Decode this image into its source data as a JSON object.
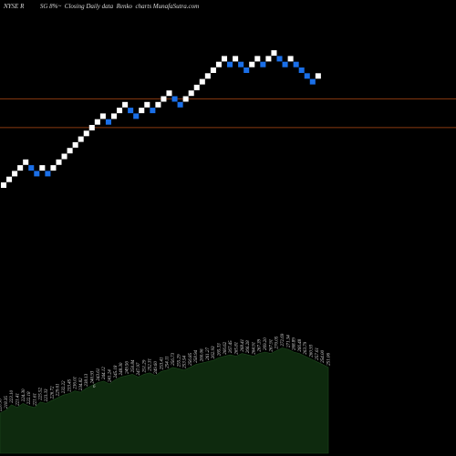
{
  "chart_data": {
    "type": "renko",
    "title": "NYSE R          SG 8%~  Closing Daily data  Renko  charts MunafaSutra.com",
    "colors": {
      "background": "#000000",
      "up_brick": "#ffffff",
      "down_brick": "#1a6fe8",
      "reference_line": "#8a3a10",
      "volume_fill": "#0e2a0e"
    },
    "bricks": [
      {
        "level": 1,
        "dir": "up"
      },
      {
        "level": 2,
        "dir": "up"
      },
      {
        "level": 3,
        "dir": "up"
      },
      {
        "level": 4,
        "dir": "up"
      },
      {
        "level": 5,
        "dir": "up"
      },
      {
        "level": 4,
        "dir": "down"
      },
      {
        "level": 3,
        "dir": "down"
      },
      {
        "level": 4,
        "dir": "up"
      },
      {
        "level": 3,
        "dir": "down"
      },
      {
        "level": 4,
        "dir": "up"
      },
      {
        "level": 5,
        "dir": "up"
      },
      {
        "level": 6,
        "dir": "up"
      },
      {
        "level": 7,
        "dir": "up"
      },
      {
        "level": 8,
        "dir": "up"
      },
      {
        "level": 9,
        "dir": "up"
      },
      {
        "level": 10,
        "dir": "up"
      },
      {
        "level": 11,
        "dir": "up"
      },
      {
        "level": 12,
        "dir": "up"
      },
      {
        "level": 13,
        "dir": "up"
      },
      {
        "level": 12,
        "dir": "down"
      },
      {
        "level": 13,
        "dir": "up"
      },
      {
        "level": 14,
        "dir": "up"
      },
      {
        "level": 15,
        "dir": "up"
      },
      {
        "level": 14,
        "dir": "down"
      },
      {
        "level": 13,
        "dir": "down"
      },
      {
        "level": 14,
        "dir": "up"
      },
      {
        "level": 15,
        "dir": "up"
      },
      {
        "level": 14,
        "dir": "down"
      },
      {
        "level": 15,
        "dir": "up"
      },
      {
        "level": 16,
        "dir": "up"
      },
      {
        "level": 17,
        "dir": "up"
      },
      {
        "level": 16,
        "dir": "down"
      },
      {
        "level": 15,
        "dir": "down"
      },
      {
        "level": 16,
        "dir": "up"
      },
      {
        "level": 17,
        "dir": "up"
      },
      {
        "level": 18,
        "dir": "up"
      },
      {
        "level": 19,
        "dir": "up"
      },
      {
        "level": 20,
        "dir": "up"
      },
      {
        "level": 21,
        "dir": "up"
      },
      {
        "level": 22,
        "dir": "up"
      },
      {
        "level": 23,
        "dir": "up"
      },
      {
        "level": 22,
        "dir": "down"
      },
      {
        "level": 23,
        "dir": "up"
      },
      {
        "level": 22,
        "dir": "down"
      },
      {
        "level": 21,
        "dir": "down"
      },
      {
        "level": 22,
        "dir": "up"
      },
      {
        "level": 23,
        "dir": "up"
      },
      {
        "level": 22,
        "dir": "down"
      },
      {
        "level": 23,
        "dir": "up"
      },
      {
        "level": 24,
        "dir": "up"
      },
      {
        "level": 23,
        "dir": "down"
      },
      {
        "level": 22,
        "dir": "down"
      },
      {
        "level": 23,
        "dir": "up"
      },
      {
        "level": 22,
        "dir": "down"
      },
      {
        "level": 21,
        "dir": "down"
      },
      {
        "level": 20,
        "dir": "down"
      },
      {
        "level": 19,
        "dir": "down"
      },
      {
        "level": 20,
        "dir": "up"
      }
    ],
    "reference_lines": [
      16.5,
      11.5
    ],
    "volume": [
      29,
      31,
      35,
      33,
      36,
      34,
      33,
      37,
      36,
      38,
      40,
      42,
      43,
      45,
      44,
      47,
      49,
      51,
      52,
      50,
      53,
      55,
      56,
      57,
      55,
      57,
      58,
      56,
      59,
      60,
      62,
      61,
      60,
      62,
      64,
      65,
      66,
      67,
      69,
      70,
      71,
      70,
      72,
      71,
      70,
      72,
      73,
      72,
      74,
      76,
      75,
      73,
      72,
      70,
      68,
      66,
      64,
      62
    ],
    "volume_labels": [
      "220.90",
      "218.35",
      "223.10",
      "221.41",
      "224.30",
      "222.18",
      "221.61",
      "225.52",
      "223.33",
      "226.72",
      "229.61",
      "232.22",
      "233.45",
      "236.01",
      "234.82",
      "238.13",
      "240.93",
      "243.61",
      "244.12",
      "241.24",
      "245.18",
      "248.30",
      "249.56",
      "250.84",
      "247.97",
      "251.29",
      "252.31",
      "249.60",
      "253.41",
      "254.11",
      "256.73",
      "255.29",
      "253.54",
      "256.85",
      "258.94",
      "260.06",
      "261.27",
      "262.93",
      "265.33",
      "266.62",
      "267.45",
      "265.81",
      "268.41",
      "266.28",
      "264.91",
      "267.39",
      "269.20",
      "267.91",
      "270.05",
      "272.69",
      "271.34",
      "268.89",
      "266.48",
      "263.79",
      "260.93",
      "257.61",
      "254.00",
      "251.06"
    ],
    "volume_marker": "6"
  }
}
